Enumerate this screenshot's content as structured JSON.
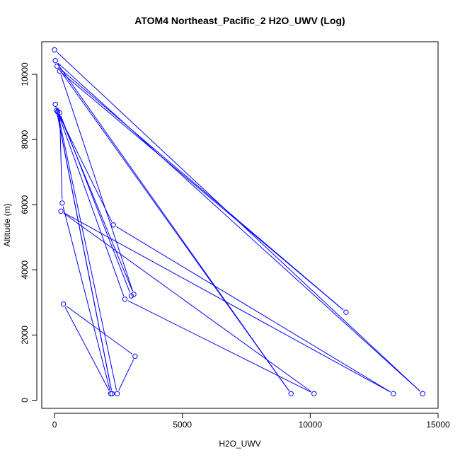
{
  "chart_data": {
    "type": "line",
    "title": "ATOM4 Northeast_Pacific_2 H2O_UWV (Log)",
    "xlabel": "H2O_UWV",
    "ylabel": "Altitude (m)",
    "xlim": [
      -500,
      15000
    ],
    "ylim": [
      -250,
      11000
    ],
    "xticks": [
      0,
      5000,
      10000,
      15000
    ],
    "yticks": [
      0,
      2000,
      4000,
      6000,
      8000,
      10000
    ],
    "grid": false,
    "line_color": "#0000ff",
    "marker": "open-circle",
    "series": [
      {
        "points": [
          {
            "x": 0,
            "y": 10750
          },
          {
            "x": 14400,
            "y": 200
          },
          {
            "x": 30,
            "y": 10420
          },
          {
            "x": 9250,
            "y": 200
          },
          {
            "x": 100,
            "y": 10250
          },
          {
            "x": 11400,
            "y": 2700
          },
          {
            "x": 200,
            "y": 10100
          },
          {
            "x": 3100,
            "y": 3250
          },
          {
            "x": 30,
            "y": 9080
          },
          {
            "x": 2250,
            "y": 200
          },
          {
            "x": 80,
            "y": 8900
          },
          {
            "x": 2300,
            "y": 5380
          },
          {
            "x": 13250,
            "y": 200
          },
          {
            "x": 250,
            "y": 5800
          },
          {
            "x": 10150,
            "y": 200
          },
          {
            "x": 2750,
            "y": 3100
          },
          {
            "x": 120,
            "y": 8850
          },
          {
            "x": 2450,
            "y": 200
          },
          {
            "x": 3150,
            "y": 1350
          },
          {
            "x": 350,
            "y": 2950
          },
          {
            "x": 2200,
            "y": 200
          },
          {
            "x": 300,
            "y": 6050
          },
          {
            "x": 200,
            "y": 8820
          },
          {
            "x": 3000,
            "y": 3200
          }
        ]
      }
    ]
  }
}
